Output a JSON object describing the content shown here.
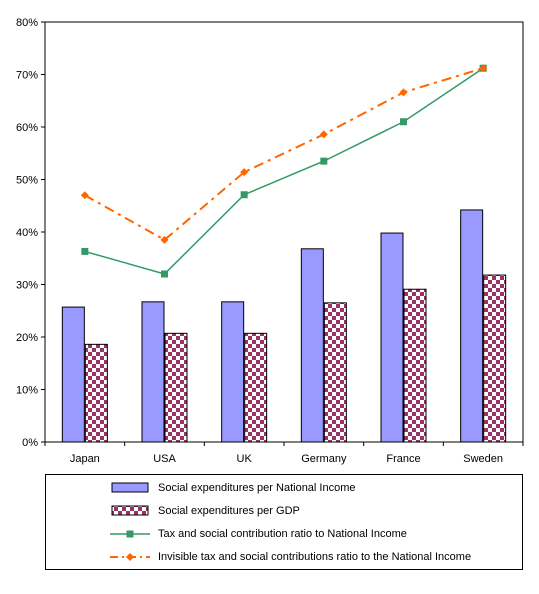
{
  "chart_data": {
    "type": "bar",
    "categories": [
      "Japan",
      "USA",
      "UK",
      "Germany",
      "France",
      "Sweden"
    ],
    "ylim": [
      0,
      80
    ],
    "yticks": [
      "0%",
      "10%",
      "20%",
      "30%",
      "40%",
      "50%",
      "60%",
      "70%",
      "80%"
    ],
    "series": [
      {
        "name": "Social expenditures per National Income",
        "kind": "bar",
        "color": "#9999ff",
        "values": [
          25.7,
          26.7,
          26.7,
          36.8,
          39.8,
          44.2
        ]
      },
      {
        "name": "Social expenditures per GDP",
        "kind": "bar",
        "color": "#993366",
        "values": [
          18.6,
          20.7,
          20.7,
          26.5,
          29.1,
          31.8
        ]
      },
      {
        "name": "Tax and social contribution ratio to National Income",
        "kind": "line",
        "color": "#339966",
        "marker": "square",
        "values": [
          36.3,
          32.0,
          47.1,
          53.5,
          61.0,
          71.2
        ]
      },
      {
        "name": "Invisible tax and social contributions ratio to the National Income",
        "kind": "line",
        "color": "#ff6600",
        "marker": "diamond",
        "dashed": true,
        "values": [
          47.0,
          38.5,
          51.4,
          58.6,
          66.6,
          71.2
        ]
      }
    ],
    "legend_position": "bottom",
    "grid": false
  }
}
